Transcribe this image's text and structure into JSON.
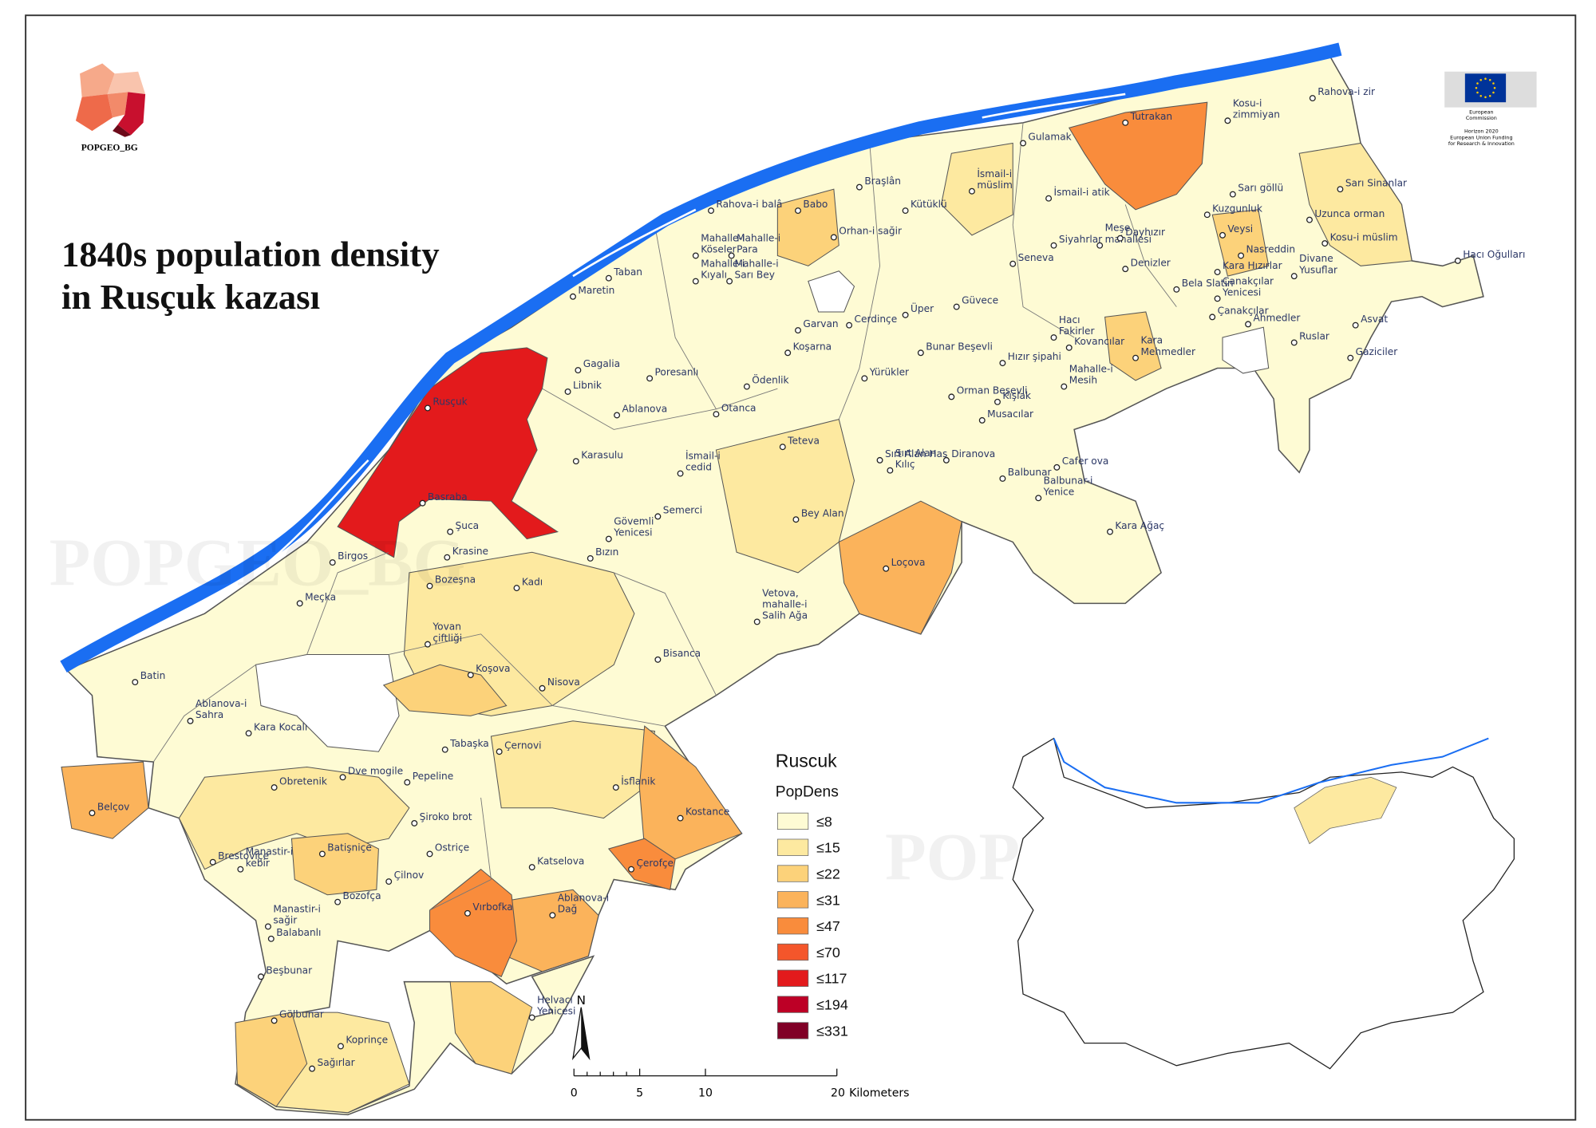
{
  "title": [
    "1840s population density",
    "in Rusçuk kazası"
  ],
  "logo": "POPGEO_BG",
  "watermark": "POPGEO_BG",
  "funding": [
    "European",
    "Commission",
    "Horizon 2020",
    "European Union Funding",
    "for Research & Innovation"
  ],
  "legend": {
    "title": "Ruscuk",
    "field": "PopDens",
    "classes": [
      {
        "label": "≤8",
        "color": "#fefbd4"
      },
      {
        "label": "≤15",
        "color": "#fde9a0"
      },
      {
        "label": "≤22",
        "color": "#fcd27a"
      },
      {
        "label": "≤31",
        "color": "#fbb35b"
      },
      {
        "label": "≤47",
        "color": "#f98c3c"
      },
      {
        "label": "≤70",
        "color": "#f4562b"
      },
      {
        "label": "≤117",
        "color": "#e31a1c"
      },
      {
        "label": "≤194",
        "color": "#bd0026"
      },
      {
        "label": "≤331",
        "color": "#800026"
      }
    ]
  },
  "north": "N",
  "scale": {
    "ticks": [
      0,
      5,
      10,
      20
    ],
    "unit": "Kilometers"
  },
  "places": [
    [
      "Rahova-i zir"
    ],
    [
      "Kosu-i",
      "zimmiyan"
    ],
    [
      "Tutrakan"
    ],
    [
      "Gulamak"
    ],
    [
      "İsmail-i",
      "müslim"
    ],
    [
      "İsmail-i atik"
    ],
    [
      "Sarı göllü"
    ],
    [
      "Sarı Sinanlar"
    ],
    [
      "Kuzgunluk"
    ],
    [
      "Uzunca orman"
    ],
    [
      "Braşlân"
    ],
    [
      "Kütüklü"
    ],
    [
      "Rahova-i balâ"
    ],
    [
      "Babo"
    ],
    [
      "Orhan-i sağir"
    ],
    [
      "Siyahrlar"
    ],
    [
      "Meşe",
      "mahallesi"
    ],
    [
      "Dayhızır"
    ],
    [
      "Veysi"
    ],
    [
      "Kosu-i müslim"
    ],
    [
      "Hacı Oğulları"
    ],
    [
      "Mahalle-i",
      "Köseler"
    ],
    [
      "Mahalle-i",
      "Para"
    ],
    [
      "Taban"
    ],
    [
      "Nasreddin"
    ],
    [
      "Seneva"
    ],
    [
      "Denizler"
    ],
    [
      "Kara Hızırlar"
    ],
    [
      "Divane",
      "Yusuflar"
    ],
    [
      "Mahalle-i",
      "Kıyalı"
    ],
    [
      "Mahalle-i",
      "Sarı Bey"
    ],
    [
      "Maretin"
    ],
    [
      "Bela Slatin"
    ],
    [
      "Çanakçılar",
      "Yenicesi"
    ],
    [
      "Güvece"
    ],
    [
      "Üper"
    ],
    [
      "Cerdinçe"
    ],
    [
      "Garvan"
    ],
    [
      "Asvat"
    ],
    [
      "Çanakçılar"
    ],
    [
      "Ahmedler"
    ],
    [
      "Hacı",
      "Fakirler"
    ],
    [
      "Koşarna"
    ],
    [
      "Bunar Beşevli"
    ],
    [
      "Kovancılar"
    ],
    [
      "Kara",
      "Mehmedler"
    ],
    [
      "Ruslar"
    ],
    [
      "Gaziciler"
    ],
    [
      "Gagalia"
    ],
    [
      "Libnik"
    ],
    [
      "Hızır şipahi"
    ],
    [
      "Poresanlı"
    ],
    [
      "Ödenlik"
    ],
    [
      "Yürükler"
    ],
    [
      "Mahalle-i",
      "Mesih"
    ],
    [
      "Orman Beşevli"
    ],
    [
      "Kışlak"
    ],
    [
      "Rusçuk"
    ],
    [
      "Ablanova"
    ],
    [
      "Otanca"
    ],
    [
      "Musacılar"
    ],
    [
      "Teteva"
    ],
    [
      "Sırt Alan Has"
    ],
    [
      "Sırt Alan",
      "Kılıç"
    ],
    [
      "İsmail-i",
      "cedid"
    ],
    [
      "Karasulu"
    ],
    [
      "Diranova"
    ],
    [
      "Cafer ova"
    ],
    [
      "Balbunar"
    ],
    [
      "Balbunar-i",
      "Yenice"
    ],
    [
      "Basraba"
    ],
    [
      "Gövemli",
      "Yenicesi"
    ],
    [
      "Semerci"
    ],
    [
      "Bey Alan"
    ],
    [
      "Kara Ağaç"
    ],
    [
      "Şuca"
    ],
    [
      "Krasine"
    ],
    [
      "Bızın"
    ],
    [
      "Birgos"
    ],
    [
      "Loçova"
    ],
    [
      "Bozeşna"
    ],
    [
      "Kadı"
    ],
    [
      "Vetova,",
      "mahalle-i",
      "Salih Ağa"
    ],
    [
      "Meçka"
    ],
    [
      "Yovan",
      "çiftliği"
    ],
    [
      "Bisanca"
    ],
    [
      "Koşova"
    ],
    [
      "Batin"
    ],
    [
      "Nisova"
    ],
    [
      "Ablanova-i",
      "Sahra"
    ],
    [
      "Kara Kocalı"
    ],
    [
      "Tabaşka"
    ],
    [
      "Çernovi"
    ],
    [
      "Dve mogile"
    ],
    [
      "Pepeline"
    ],
    [
      "Obretenik"
    ],
    [
      "İsflanik"
    ],
    [
      "Kostance"
    ],
    [
      "Belçov"
    ],
    [
      "Şiroko brot"
    ],
    [
      "Brestoviçe"
    ],
    [
      "Manastir-i",
      "kebir"
    ],
    [
      "Batişniçe"
    ],
    [
      "Ostriçe"
    ],
    [
      "Katselova"
    ],
    [
      "Çerofçe"
    ],
    [
      "Çilnov"
    ],
    [
      "Ablanova-i",
      "Dağ"
    ],
    [
      "Vırbofka"
    ],
    [
      "Bozofça"
    ],
    [
      "Manastir-i",
      "sağir"
    ],
    [
      "Balabanlı"
    ],
    [
      "Beşbunar"
    ],
    [
      "Helvacı",
      "Yenicesi"
    ],
    [
      "Gölbunar"
    ],
    [
      "Koprinçe"
    ],
    [
      "Sağırlar"
    ]
  ]
}
